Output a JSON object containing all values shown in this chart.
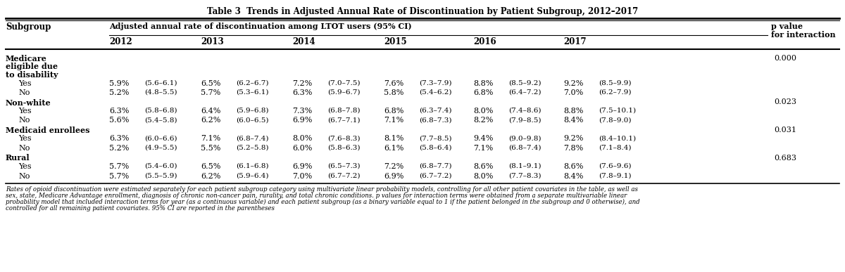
{
  "title": "Table 3  Trends in Adjusted Annual Rate of Discontinuation by Patient Subgroup, 2012–2017",
  "col0_header": "Subgroup",
  "span_header": "Adjusted annual rate of discontinuation among LTOT users (95% CI)",
  "p_header_line1": "p value",
  "p_header_line2": "for interaction",
  "years": [
    "2012",
    "2013",
    "2014",
    "2015",
    "2016",
    "2017"
  ],
  "rows": [
    {
      "label": "Medicare\neligible due\nto disability",
      "is_group": true,
      "values": [],
      "p": "0.000"
    },
    {
      "label": "Yes",
      "is_group": false,
      "values": [
        "5.9%",
        "(5.6–6.1)",
        "6.5%",
        "(6.2–6.7)",
        "7.2%",
        "(7.0–7.5)",
        "7.6%",
        "(7.3–7.9)",
        "8.8%",
        "(8.5–9.2)",
        "9.2%",
        "(8.5–9.9)"
      ],
      "p": ""
    },
    {
      "label": "No",
      "is_group": false,
      "values": [
        "5.2%",
        "(4.8–5.5)",
        "5.7%",
        "(5.3–6.1)",
        "6.3%",
        "(5.9–6.7)",
        "5.8%",
        "(5.4–6.2)",
        "6.8%",
        "(6.4–7.2)",
        "7.0%",
        "(6.2–7.9)"
      ],
      "p": ""
    },
    {
      "label": "Non-white",
      "is_group": true,
      "values": [],
      "p": "0.023"
    },
    {
      "label": "Yes",
      "is_group": false,
      "values": [
        "6.3%",
        "(5.8–6.8)",
        "6.4%",
        "(5.9–6.8)",
        "7.3%",
        "(6.8–7.8)",
        "6.8%",
        "(6.3–7.4)",
        "8.0%",
        "(7.4–8.6)",
        "8.8%",
        "(7.5–10.1)"
      ],
      "p": ""
    },
    {
      "label": "No",
      "is_group": false,
      "values": [
        "5.6%",
        "(5.4–5.8)",
        "6.2%",
        "(6.0–6.5)",
        "6.9%",
        "(6.7–7.1)",
        "7.1%",
        "(6.8–7.3)",
        "8.2%",
        "(7.9–8.5)",
        "8.4%",
        "(7.8–9.0)"
      ],
      "p": ""
    },
    {
      "label": "Medicaid enrollees",
      "is_group": true,
      "values": [],
      "p": "0.031"
    },
    {
      "label": "Yes",
      "is_group": false,
      "values": [
        "6.3%",
        "(6.0–6.6)",
        "7.1%",
        "(6.8–7.4)",
        "8.0%",
        "(7.6–8.3)",
        "8.1%",
        "(7.7–8.5)",
        "9.4%",
        "(9.0–9.8)",
        "9.2%",
        "(8.4–10.1)"
      ],
      "p": ""
    },
    {
      "label": "No",
      "is_group": false,
      "values": [
        "5.2%",
        "(4.9–5.5)",
        "5.5%",
        "(5.2–5.8)",
        "6.0%",
        "(5.8–6.3)",
        "6.1%",
        "(5.8–6.4)",
        "7.1%",
        "(6.8–7.4)",
        "7.8%",
        "(7.1–8.4)"
      ],
      "p": ""
    },
    {
      "label": "Rural",
      "is_group": true,
      "values": [],
      "p": "0.683"
    },
    {
      "label": "Yes",
      "is_group": false,
      "values": [
        "5.7%",
        "(5.4–6.0)",
        "6.5%",
        "(6.1–6.8)",
        "6.9%",
        "(6.5–7.3)",
        "7.2%",
        "(6.8–7.7)",
        "8.6%",
        "(8.1–9.1)",
        "8.6%",
        "(7.6–9.6)"
      ],
      "p": ""
    },
    {
      "label": "No",
      "is_group": false,
      "values": [
        "5.7%",
        "(5.5–5.9)",
        "6.2%",
        "(5.9–6.4)",
        "7.0%",
        "(6.7–7.2)",
        "6.9%",
        "(6.7–7.2)",
        "8.0%",
        "(7.7–8.3)",
        "8.4%",
        "(7.8–9.1)"
      ],
      "p": ""
    }
  ],
  "footnote_lines": [
    "Rates of opioid discontinuation were estimated separately for each patient subgroup category using multivariate linear probability models, controlling for all other patient covariates in the table, as well as",
    "sex, state, Medicare Advantage enrollment, diagnosis of chronic non-cancer pain, rurality, and total chronic conditions. p values for interaction terms were obtained from a separate multivariable linear",
    "probability model that included interaction terms for year (as a continuous variable) and each patient subgroup (as a binary variable equal to 1 if the patient belonged in the subgroup and 0 otherwise), and",
    "controlled for all remaining patient covariates. 95% CI are reported in the parentheses"
  ],
  "bg_color": "#ffffff"
}
